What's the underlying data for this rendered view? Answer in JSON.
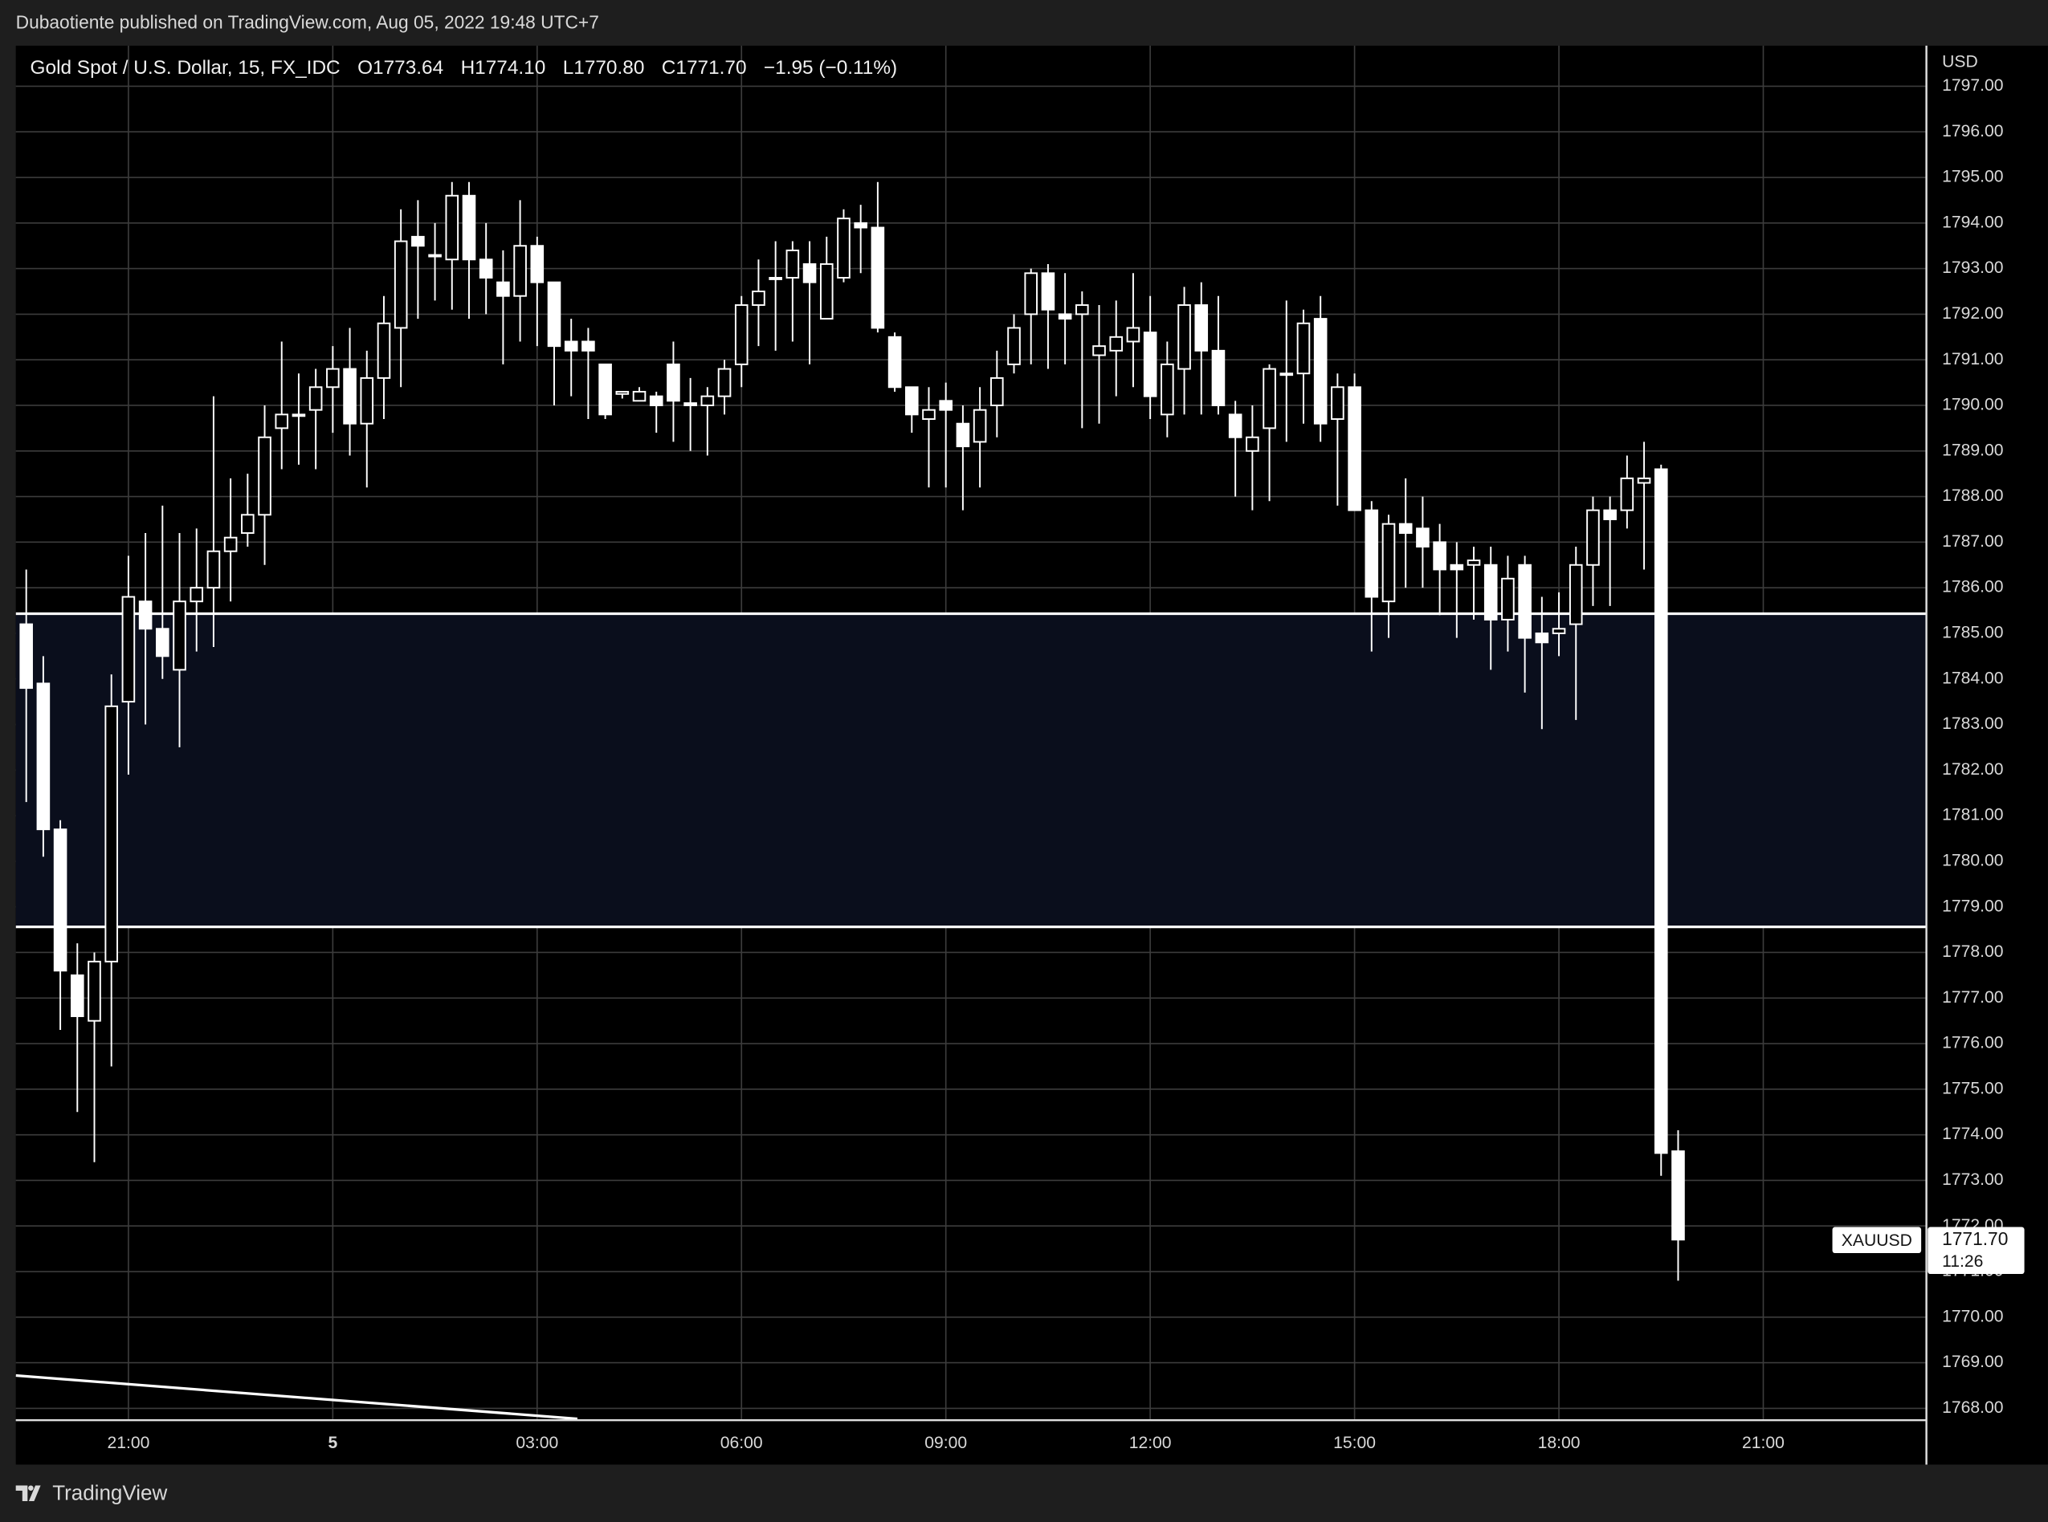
{
  "header": {
    "published": "Dubaotiente published on TradingView.com, Aug 05, 2022 19:48 UTC+7"
  },
  "footer": {
    "brand": "TradingView"
  },
  "chart_data": {
    "type": "candlestick",
    "title": "Gold Spot / U.S. Dollar, 15, FX_IDC",
    "legend_items": [
      "O1773.64",
      "H1774.10",
      "L1770.80",
      "C1771.70",
      "−1.95 (−0.11%)"
    ],
    "currency": "USD",
    "symbol_tag": "XAUUSD",
    "last_price_label": "1771.70",
    "countdown": "11:26",
    "color": "#ffffff",
    "zone_color": "#0a0e1c",
    "grid": true,
    "levels": [
      1785.43,
      1778.56
    ],
    "trendline": [
      1768.72,
      1767.77
    ],
    "categories": [
      null,
      null,
      null,
      null,
      null,
      null,
      "21:00",
      null,
      null,
      null,
      null,
      null,
      null,
      null,
      null,
      null,
      null,
      null,
      "5",
      null,
      null,
      null,
      null,
      null,
      null,
      null,
      null,
      null,
      null,
      null,
      "03:00",
      null,
      null,
      null,
      null,
      null,
      null,
      null,
      null,
      null,
      null,
      null,
      "06:00",
      null,
      null,
      null,
      null,
      null,
      null,
      null,
      null,
      null,
      null,
      null,
      "09:00",
      null,
      null,
      null,
      null,
      null,
      null,
      null,
      null,
      null,
      null,
      null,
      "12:00",
      null,
      null,
      null,
      null,
      null,
      null,
      null,
      null,
      null,
      null,
      null,
      "15:00",
      null,
      null,
      null,
      null,
      null,
      null,
      null,
      null,
      null,
      null,
      null,
      "18:00",
      null,
      null,
      null,
      null,
      null,
      null,
      null,
      null,
      null,
      null,
      null,
      "21:00"
    ],
    "open": [
      1785.2,
      1783.9,
      1780.7,
      1777.5,
      1776.5,
      1777.8,
      1783.5,
      1785.7,
      1785.1,
      1784.2,
      1785.7,
      1786.0,
      1786.8,
      1787.2,
      1787.6,
      1789.5,
      1789.8,
      1789.9,
      1790.4,
      1790.8,
      1789.6,
      1790.6,
      1791.7,
      1793.7,
      1793.3,
      1793.2,
      1794.6,
      1793.2,
      1792.7,
      1792.4,
      1793.5,
      1792.7,
      1791.4,
      1791.4,
      1790.9,
      1790.25,
      1790.1,
      1790.2,
      1790.9,
      1790.05,
      1790.0,
      1790.2,
      1790.9,
      1792.2,
      1792.8,
      1792.8,
      1793.1,
      1791.9,
      1792.8,
      1794.0,
      1793.9,
      1791.5,
      1790.4,
      1789.7,
      1790.1,
      1789.6,
      1789.2,
      1790.0,
      1790.9,
      1792.0,
      1792.9,
      1792.0,
      1792.0,
      1791.1,
      1791.2,
      1791.4,
      1791.6,
      1789.8,
      1790.8,
      1792.2,
      1791.2,
      1789.8,
      1789.0,
      1789.5,
      1790.7,
      1790.7,
      1791.9,
      1789.7,
      1790.4,
      1787.7,
      1785.7,
      1787.4,
      1787.3,
      1787.0,
      1786.5,
      1786.5,
      1786.5,
      1785.3,
      1786.5,
      1785.0,
      1785.0,
      1785.2,
      1786.5,
      1787.7,
      1787.7,
      1788.3,
      1788.6,
      1773.64,
      null,
      null,
      null,
      null,
      null
    ],
    "high": [
      1786.4,
      1784.5,
      1780.9,
      1778.2,
      1778.0,
      1784.1,
      1786.7,
      1787.2,
      1787.8,
      1787.2,
      1787.3,
      1790.2,
      1788.4,
      1788.5,
      1790.0,
      1791.4,
      1790.7,
      1790.8,
      1791.3,
      1791.7,
      1791.2,
      1792.4,
      1794.3,
      1794.5,
      1794.0,
      1794.9,
      1794.9,
      1794.0,
      1793.4,
      1794.5,
      1793.7,
      1792.7,
      1791.9,
      1791.7,
      1790.9,
      1790.3,
      1790.4,
      1790.3,
      1791.4,
      1790.6,
      1790.4,
      1791.0,
      1792.4,
      1793.2,
      1793.6,
      1793.6,
      1793.6,
      1793.7,
      1794.3,
      1794.4,
      1794.9,
      1791.6,
      1790.4,
      1790.4,
      1790.5,
      1790.0,
      1790.4,
      1791.2,
      1792.0,
      1793.0,
      1793.1,
      1792.9,
      1792.5,
      1792.2,
      1792.3,
      1792.9,
      1792.4,
      1791.4,
      1792.6,
      1792.7,
      1792.4,
      1790.1,
      1790.0,
      1790.9,
      1792.3,
      1792.1,
      1792.4,
      1790.7,
      1790.7,
      1787.9,
      1787.6,
      1788.4,
      1788.0,
      1787.4,
      1787.0,
      1786.9,
      1786.9,
      1786.7,
      1786.7,
      1785.8,
      1785.9,
      1786.9,
      1788.0,
      1788.0,
      1788.9,
      1789.2,
      1788.7,
      1774.1,
      null,
      null,
      null,
      null,
      null
    ],
    "low": [
      1781.3,
      1780.1,
      1776.3,
      1774.5,
      1773.4,
      1775.5,
      1781.9,
      1783.0,
      1784.0,
      1782.5,
      1784.6,
      1784.7,
      1785.7,
      1786.9,
      1786.5,
      1788.6,
      1788.7,
      1788.6,
      1789.4,
      1788.9,
      1788.2,
      1789.7,
      1790.4,
      1791.9,
      1792.3,
      1792.1,
      1791.9,
      1792.0,
      1790.9,
      1791.4,
      1791.3,
      1790.0,
      1790.2,
      1789.7,
      1789.7,
      1790.15,
      1790.1,
      1789.4,
      1789.2,
      1789.0,
      1788.9,
      1789.8,
      1790.4,
      1791.3,
      1791.2,
      1791.4,
      1790.9,
      1791.9,
      1792.7,
      1792.9,
      1791.6,
      1790.3,
      1789.4,
      1788.2,
      1788.2,
      1787.7,
      1788.2,
      1789.3,
      1790.7,
      1790.9,
      1790.8,
      1790.9,
      1789.5,
      1789.6,
      1790.2,
      1790.4,
      1789.7,
      1789.3,
      1789.8,
      1789.8,
      1789.8,
      1788.0,
      1787.7,
      1787.9,
      1789.2,
      1789.6,
      1789.2,
      1787.8,
      1787.7,
      1784.6,
      1784.9,
      1786.0,
      1786.0,
      1785.4,
      1784.9,
      1785.3,
      1784.2,
      1784.6,
      1783.7,
      1782.9,
      1784.5,
      1783.1,
      1785.6,
      1785.6,
      1787.3,
      1786.4,
      1773.1,
      1770.8,
      null,
      null,
      null,
      null,
      null
    ],
    "close": [
      1783.8,
      1780.7,
      1777.6,
      1776.6,
      1777.8,
      1783.4,
      1785.8,
      1785.1,
      1784.5,
      1785.7,
      1786.0,
      1786.8,
      1787.1,
      1787.6,
      1789.3,
      1789.8,
      1789.8,
      1790.4,
      1790.8,
      1789.6,
      1790.6,
      1791.8,
      1793.6,
      1793.5,
      1793.3,
      1794.6,
      1793.2,
      1792.8,
      1792.4,
      1793.5,
      1792.7,
      1791.3,
      1791.2,
      1791.2,
      1789.8,
      1790.3,
      1790.3,
      1790.0,
      1790.1,
      1790.0,
      1790.2,
      1790.8,
      1792.2,
      1792.5,
      1792.8,
      1793.4,
      1792.7,
      1793.1,
      1794.1,
      1793.9,
      1791.7,
      1790.4,
      1789.8,
      1789.9,
      1789.9,
      1789.1,
      1789.9,
      1790.6,
      1791.7,
      1792.9,
      1792.1,
      1791.9,
      1792.2,
      1791.3,
      1791.5,
      1791.7,
      1790.2,
      1790.9,
      1792.2,
      1791.2,
      1790.0,
      1789.3,
      1789.3,
      1790.8,
      1790.7,
      1791.8,
      1789.6,
      1790.4,
      1787.7,
      1785.8,
      1787.4,
      1787.2,
      1786.9,
      1786.4,
      1786.4,
      1786.6,
      1785.3,
      1786.2,
      1784.9,
      1784.8,
      1785.1,
      1786.5,
      1787.7,
      1787.5,
      1788.4,
      1788.4,
      1773.6,
      1771.7,
      null,
      null,
      null,
      null,
      null
    ],
    "ylim": [
      1767.74,
      1797.89
    ],
    "yticks": [
      {
        "value": 1768,
        "label": "1768.00"
      },
      {
        "value": 1769,
        "label": "1769.00"
      },
      {
        "value": 1770,
        "label": "1770.00"
      },
      {
        "value": 1771,
        "label": "1771.00"
      },
      {
        "value": 1772,
        "label": "1772.00"
      },
      {
        "value": 1773,
        "label": "1773.00"
      },
      {
        "value": 1774,
        "label": "1774.00"
      },
      {
        "value": 1775,
        "label": "1775.00"
      },
      {
        "value": 1776,
        "label": "1776.00"
      },
      {
        "value": 1777,
        "label": "1777.00"
      },
      {
        "value": 1778,
        "label": "1778.00"
      },
      {
        "value": 1779,
        "label": "1779.00"
      },
      {
        "value": 1780,
        "label": "1780.00"
      },
      {
        "value": 1781,
        "label": "1781.00"
      },
      {
        "value": 1782,
        "label": "1782.00"
      },
      {
        "value": 1783,
        "label": "1783.00"
      },
      {
        "value": 1784,
        "label": "1784.00"
      },
      {
        "value": 1785,
        "label": "1785.00"
      },
      {
        "value": 1786,
        "label": "1786.00"
      },
      {
        "value": 1787,
        "label": "1787.00"
      },
      {
        "value": 1788,
        "label": "1788.00"
      },
      {
        "value": 1789,
        "label": "1789.00"
      },
      {
        "value": 1790,
        "label": "1790.00"
      },
      {
        "value": 1791,
        "label": "1791.00"
      },
      {
        "value": 1792,
        "label": "1792.00"
      },
      {
        "value": 1793,
        "label": "1793.00"
      },
      {
        "value": 1794,
        "label": "1794.00"
      },
      {
        "value": 1795,
        "label": "1795.00"
      },
      {
        "value": 1796,
        "label": "1796.00"
      },
      {
        "value": 1797,
        "label": "1797.00"
      }
    ]
  }
}
